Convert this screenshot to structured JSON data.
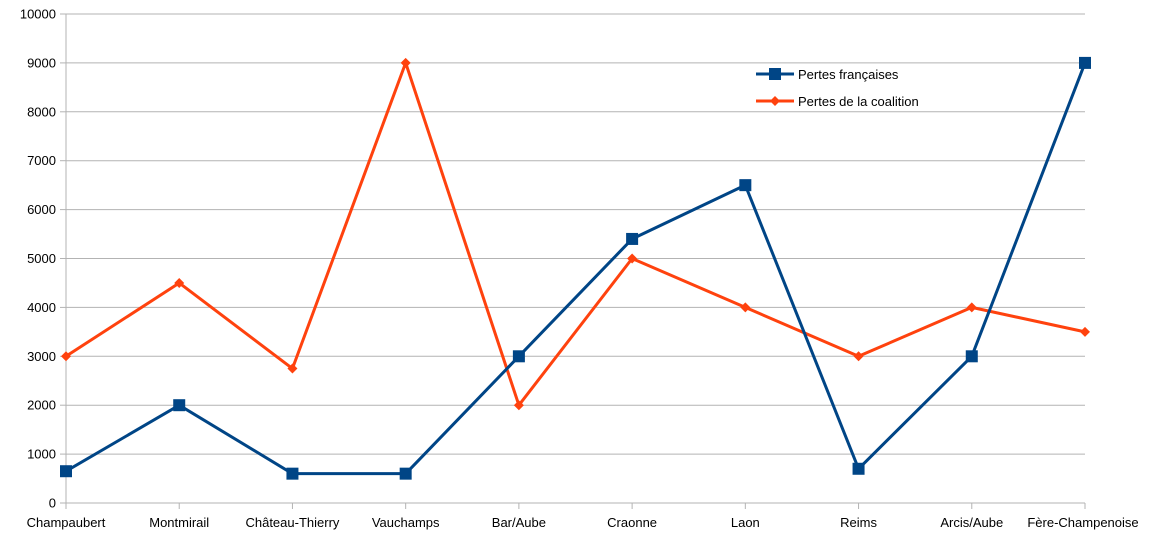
{
  "chart_data": {
    "type": "line",
    "categories": [
      "Champaubert",
      "Montmirail",
      "Château-Thierry",
      "Vauchamps",
      "Bar/Aube",
      "Craonne",
      "Laon",
      "Reims",
      "Arcis/Aube",
      "Fère-Champenoise"
    ],
    "series": [
      {
        "name": "Pertes françaises",
        "values": [
          650,
          2000,
          600,
          600,
          3000,
          5400,
          6500,
          700,
          3000,
          9000
        ],
        "color": "#004586",
        "marker": "square"
      },
      {
        "name": "Pertes de la coalition",
        "values": [
          3000,
          4500,
          2750,
          9000,
          2000,
          5000,
          4000,
          3000,
          4000,
          3500
        ],
        "color": "#ff420e",
        "marker": "diamond"
      }
    ],
    "ylim": [
      0,
      10000
    ],
    "yticks": [
      "0",
      "1000",
      "2000",
      "3000",
      "4000",
      "5000",
      "6000",
      "7000",
      "8000",
      "9000",
      "10000"
    ],
    "grid": true,
    "legend_position": "top-right"
  }
}
